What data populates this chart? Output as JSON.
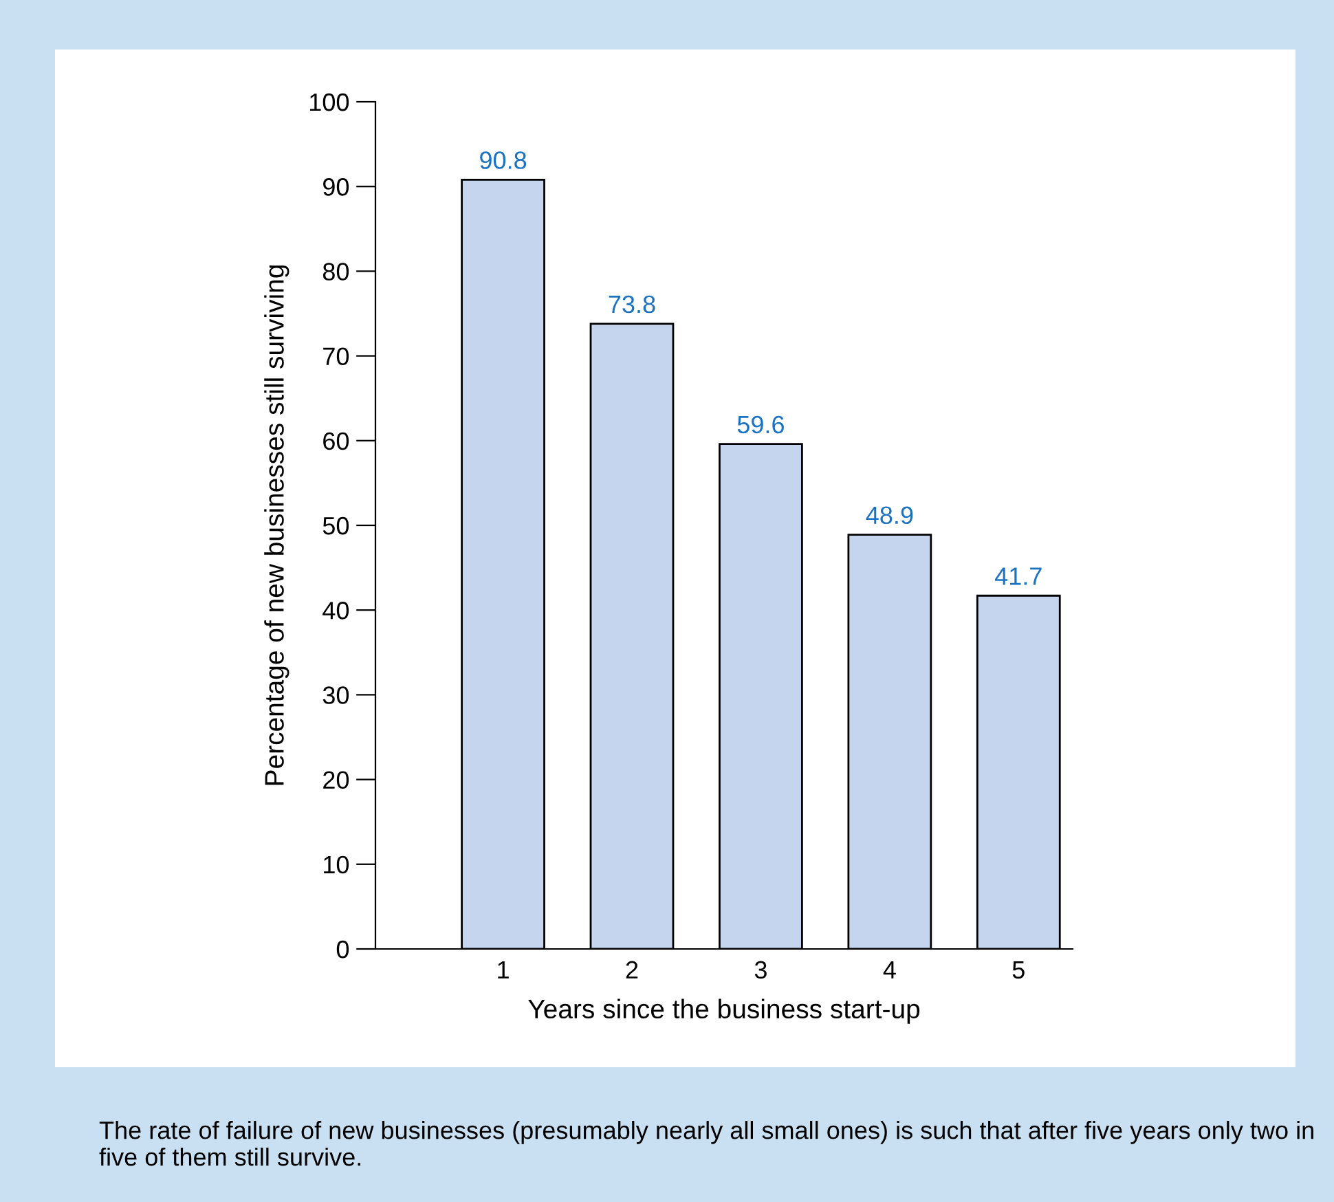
{
  "chart_data": {
    "type": "bar",
    "xlabel": "Years since the business start-up",
    "ylabel": "Percentage of new businesses still surviving",
    "categories": [
      "1",
      "2",
      "3",
      "4",
      "5"
    ],
    "values": [
      90.8,
      73.8,
      59.6,
      48.9,
      41.7
    ],
    "color": "#c6d5ee",
    "ylim": [
      0,
      100
    ],
    "yticks": [
      0,
      10,
      20,
      30,
      40,
      50,
      60,
      70,
      80,
      90,
      100
    ],
    "data_labels": true,
    "grid": false,
    "annotations": [
      "The rate of failure of new businesses (presumably nearly all small ones) is such that after five years only two in five of them still survive."
    ]
  }
}
